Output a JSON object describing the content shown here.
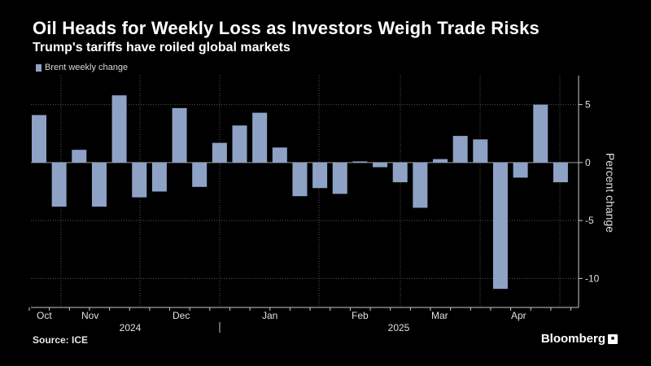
{
  "header": {
    "title": "Oil Heads for Weekly Loss as Investors Weigh Trade Risks",
    "subtitle": "Trump's tariffs have roiled global markets"
  },
  "footer": {
    "source": "Source: ICE",
    "brand": "Bloomberg"
  },
  "colors": {
    "bar": "#8ea2c6",
    "grid": "#555555",
    "axis": "#c8c8c8",
    "background": "#000000"
  },
  "chart_data": {
    "type": "bar",
    "title": "Oil Heads for Weekly Loss as Investors Weigh Trade Risks",
    "subtitle": "Trump's tariffs have roiled global markets",
    "ylabel": "Percent change",
    "ylim": [
      -12.5,
      7.5
    ],
    "yticks": [
      5,
      0,
      -5,
      -10
    ],
    "y_axis_side": "right",
    "grid": "dotted",
    "legend_position": "top-left",
    "series": [
      {
        "name": "Brent weekly change",
        "values": [
          4.1,
          -3.8,
          1.1,
          -3.8,
          5.8,
          -3.0,
          -2.5,
          4.7,
          -2.1,
          1.7,
          3.2,
          4.3,
          1.3,
          -2.9,
          -2.2,
          -2.7,
          0.1,
          -0.4,
          -1.7,
          -3.9,
          0.3,
          2.3,
          2.0,
          -10.9,
          -1.3,
          5.0,
          -1.7
        ]
      }
    ],
    "x_month_labels": [
      "Oct",
      "Nov",
      "Dec",
      "Jan",
      "Feb",
      "Mar",
      "Apr"
    ],
    "x_year_labels": [
      "2024",
      "2025"
    ]
  }
}
